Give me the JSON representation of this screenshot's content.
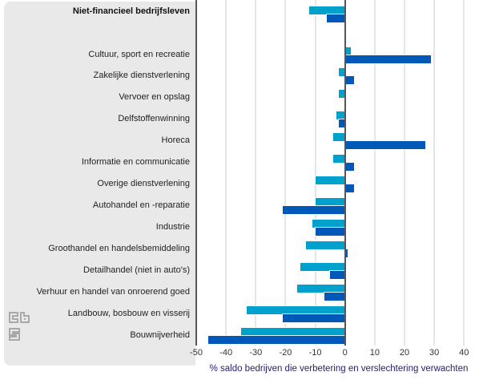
{
  "header": {
    "highlight_label": "Niet-financieel bedrijfsleven"
  },
  "axis": {
    "ticks": [
      -50,
      -40,
      -30,
      -20,
      -10,
      0,
      10,
      20,
      30,
      40
    ],
    "xlabel": "% saldo bedrijven die verbetering en verslechtering verwachten"
  },
  "logo": {
    "icon": "cbs-logo"
  },
  "colors": {
    "light_blue": "#00a1cd",
    "dark_blue": "#0058b8",
    "panel_bg": "#e9e9e9",
    "gridline": "#e6e6e6",
    "axis_line": "#55555a"
  },
  "chart_data": {
    "type": "bar",
    "orientation": "horizontal",
    "title": "",
    "xlabel": "% saldo bedrijven die verbetering en verslechtering verwachten",
    "ylabel": "",
    "xlim": [
      -50,
      45
    ],
    "grid": true,
    "legend_position": "none",
    "categories": [
      "Niet-financieel bedrijfsleven",
      "Cultuur, sport en recreatie",
      "Zakelijke dienstverlening",
      "Vervoer en opslag",
      "Delfstoffenwinning",
      "Horeca",
      "Informatie en communicatie",
      "Overige dienstverlening",
      "Autohandel en -reparatie",
      "Industrie",
      "Groothandel en handelsbemiddeling",
      "Detailhandel (niet in auto's)",
      "Verhuur en handel van onroerend goed",
      "Landbouw, bosbouw en visserij",
      "Bouwnijverheid"
    ],
    "series": [
      {
        "name": "lichtblauw",
        "color": "#00a1cd",
        "values": [
          -12,
          2,
          -2,
          -2,
          -3,
          -4,
          -4,
          -10,
          -10,
          -11,
          -13,
          -15,
          -16,
          -33,
          -35
        ]
      },
      {
        "name": "donkerblauw",
        "color": "#0058b8",
        "values": [
          -6,
          29,
          3,
          0,
          -2,
          27,
          3,
          3,
          -21,
          -10,
          1,
          -5,
          -7,
          -21,
          -46
        ]
      }
    ]
  }
}
